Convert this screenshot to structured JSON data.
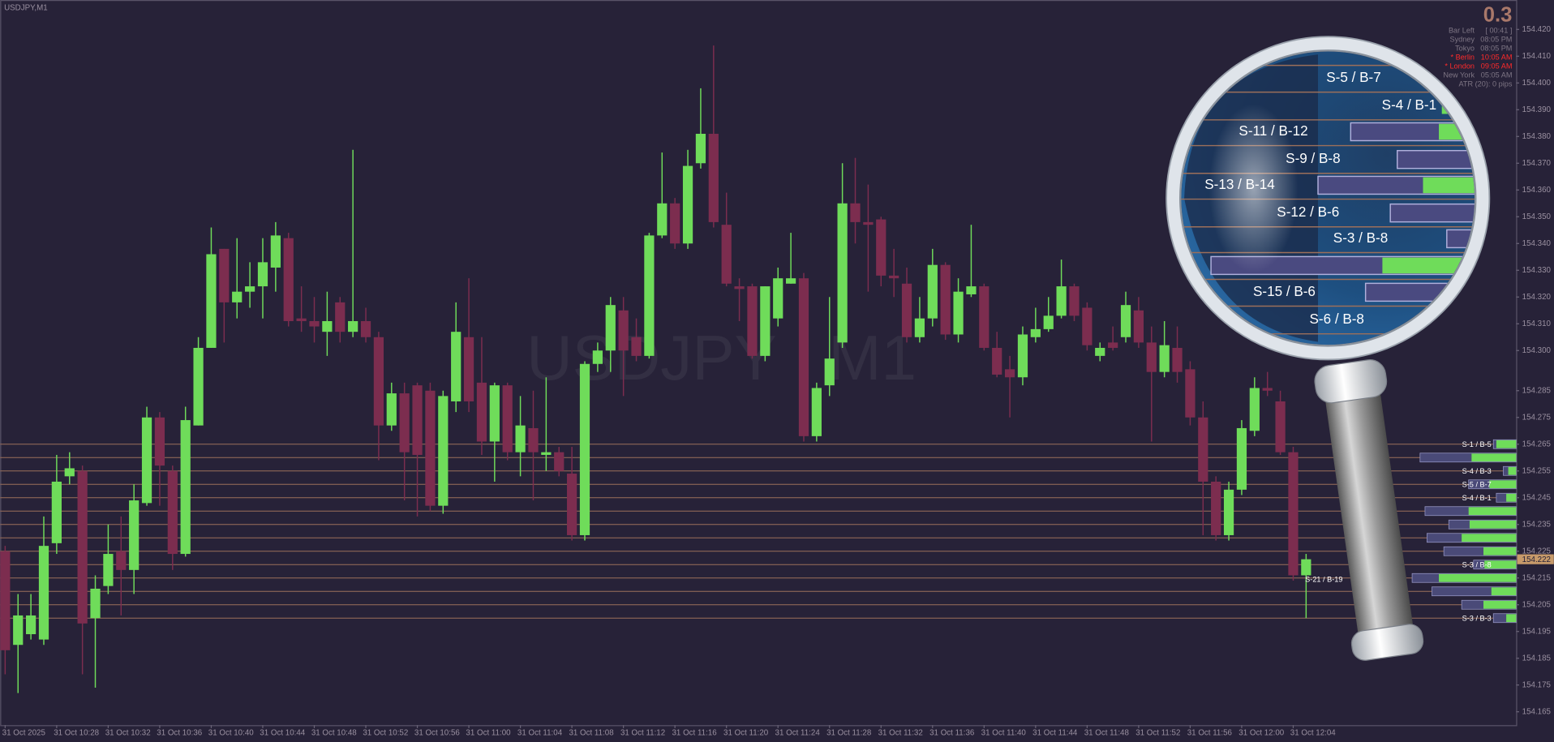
{
  "chart_data": {
    "type": "candlestick",
    "title": "USDJPY,M1",
    "watermark": "USDJPY , M1",
    "up_color": "#6fdc5a",
    "down_color": "#7c2d4f",
    "level_color": "#9c6f5a",
    "ylim": [
      154.16,
      154.431
    ],
    "yticks": [
      {
        "value": 154.42,
        "label": "154.420"
      },
      {
        "value": 154.41,
        "label": "154.410"
      },
      {
        "value": 154.4,
        "label": "154.400"
      },
      {
        "value": 154.39,
        "label": "154.390"
      },
      {
        "value": 154.38,
        "label": "154.380"
      },
      {
        "value": 154.37,
        "label": "154.370"
      },
      {
        "value": 154.36,
        "label": "154.360"
      },
      {
        "value": 154.35,
        "label": "154.350"
      },
      {
        "value": 154.34,
        "label": "154.340"
      },
      {
        "value": 154.33,
        "label": "154.330"
      },
      {
        "value": 154.32,
        "label": "154.320"
      },
      {
        "value": 154.31,
        "label": "154.310"
      },
      {
        "value": 154.3,
        "label": "154.300"
      },
      154.285,
      154.275,
      154.265,
      154.255,
      154.245,
      154.235,
      154.225,
      154.215,
      154.205,
      154.195,
      154.185,
      154.175,
      154.165
    ],
    "categories": [
      "31 Oct 2025",
      null,
      null,
      null,
      "31 Oct 10:28",
      null,
      null,
      null,
      "31 Oct 10:32",
      null,
      null,
      null,
      "31 Oct 10:36",
      null,
      null,
      null,
      "31 Oct 10:40",
      null,
      null,
      null,
      "31 Oct 10:44",
      null,
      null,
      null,
      "31 Oct 10:48",
      null,
      null,
      null,
      "31 Oct 10:52",
      null,
      null,
      null,
      "31 Oct 10:56",
      null,
      null,
      null,
      "31 Oct 11:00",
      null,
      null,
      null,
      "31 Oct 11:04",
      null,
      null,
      null,
      "31 Oct 11:08",
      null,
      null,
      null,
      "31 Oct 11:12",
      null,
      null,
      null,
      "31 Oct 11:16",
      null,
      null,
      null,
      "31 Oct 11:20",
      null,
      null,
      null,
      "31 Oct 11:24",
      null,
      null,
      null,
      "31 Oct 11:28",
      null,
      null,
      null,
      "31 Oct 11:32",
      null,
      null,
      null,
      "31 Oct 11:36",
      null,
      null,
      null,
      "31 Oct 11:40",
      null,
      null,
      null,
      "31 Oct 11:44",
      null,
      null,
      null,
      "31 Oct 11:48",
      null,
      null,
      null,
      "31 Oct 11:52",
      null,
      null,
      null,
      "31 Oct 11:56",
      null,
      null,
      null,
      "31 Oct 12:00",
      null,
      null,
      null,
      "31 Oct 12:04",
      null
    ],
    "ohlc": [
      [
        154.225,
        154.227,
        154.179,
        154.188
      ],
      [
        154.19,
        154.209,
        154.172,
        154.201
      ],
      [
        154.194,
        154.209,
        154.192,
        154.201
      ],
      [
        154.192,
        154.238,
        154.19,
        154.227
      ],
      [
        154.228,
        154.261,
        154.224,
        154.251
      ],
      [
        154.253,
        154.262,
        154.25,
        154.256
      ],
      [
        154.255,
        154.257,
        154.179,
        154.198
      ],
      [
        154.2,
        154.216,
        154.174,
        154.211
      ],
      [
        154.212,
        154.235,
        154.209,
        154.224
      ],
      [
        154.225,
        154.238,
        154.201,
        154.218
      ],
      [
        154.218,
        154.25,
        154.209,
        154.244
      ],
      [
        154.243,
        154.279,
        154.242,
        154.275
      ],
      [
        154.275,
        154.277,
        154.242,
        154.257
      ],
      [
        154.255,
        154.257,
        154.218,
        154.224
      ],
      [
        154.224,
        154.279,
        154.223,
        154.274
      ],
      [
        154.272,
        154.305,
        154.272,
        154.301
      ],
      [
        154.301,
        154.346,
        154.301,
        154.336
      ],
      [
        154.338,
        154.338,
        154.303,
        154.318
      ],
      [
        154.318,
        154.342,
        154.312,
        154.322
      ],
      [
        154.322,
        154.333,
        154.316,
        154.324
      ],
      [
        154.324,
        154.342,
        154.312,
        154.333
      ],
      [
        154.331,
        154.348,
        154.322,
        154.343
      ],
      [
        154.342,
        154.344,
        154.309,
        154.311
      ],
      [
        154.312,
        154.324,
        154.307,
        154.311
      ],
      [
        154.311,
        154.32,
        154.303,
        154.309
      ],
      [
        154.307,
        154.322,
        154.298,
        154.311
      ],
      [
        154.318,
        154.32,
        154.303,
        154.307
      ],
      [
        154.307,
        154.375,
        154.305,
        154.311
      ],
      [
        154.311,
        154.316,
        154.303,
        154.305
      ],
      [
        154.305,
        154.307,
        154.259,
        154.272
      ],
      [
        154.272,
        154.288,
        154.27,
        154.284
      ],
      [
        154.284,
        154.288,
        154.244,
        154.262
      ],
      [
        154.287,
        154.288,
        154.238,
        154.261
      ],
      [
        154.285,
        154.288,
        154.24,
        154.242
      ],
      [
        154.242,
        154.285,
        154.239,
        154.283
      ],
      [
        154.281,
        154.318,
        154.277,
        154.307
      ],
      [
        154.305,
        154.327,
        154.277,
        154.281
      ],
      [
        154.288,
        154.305,
        154.261,
        154.266
      ],
      [
        154.266,
        154.288,
        154.251,
        154.287
      ],
      [
        154.287,
        154.288,
        154.259,
        154.262
      ],
      [
        154.262,
        154.283,
        154.253,
        154.272
      ],
      [
        154.271,
        154.285,
        154.244,
        154.262
      ],
      [
        154.261,
        154.29,
        154.255,
        154.262
      ],
      [
        154.262,
        154.264,
        154.253,
        154.255
      ],
      [
        154.254,
        154.264,
        154.229,
        154.231
      ],
      [
        154.231,
        154.296,
        154.229,
        154.295
      ],
      [
        154.295,
        154.303,
        154.292,
        154.3
      ],
      [
        154.3,
        154.32,
        154.292,
        154.317
      ],
      [
        154.315,
        154.32,
        154.283,
        154.3
      ],
      [
        154.305,
        154.312,
        154.296,
        154.298
      ],
      [
        154.298,
        154.344,
        154.297,
        154.343
      ],
      [
        154.343,
        154.374,
        154.342,
        154.355
      ],
      [
        154.355,
        154.357,
        154.338,
        154.34
      ],
      [
        154.34,
        154.375,
        154.338,
        154.369
      ],
      [
        154.37,
        154.398,
        154.368,
        154.381
      ],
      [
        154.381,
        154.414,
        154.346,
        154.348
      ],
      [
        154.347,
        154.359,
        154.324,
        154.325
      ],
      [
        154.324,
        154.327,
        154.311,
        154.323
      ],
      [
        154.324,
        154.325,
        154.297,
        154.298
      ],
      [
        154.298,
        154.324,
        154.296,
        154.324
      ],
      [
        154.312,
        154.331,
        154.309,
        154.327
      ],
      [
        154.325,
        154.344,
        154.325,
        154.327
      ],
      [
        154.327,
        154.329,
        154.266,
        154.268
      ],
      [
        154.268,
        154.288,
        154.266,
        154.286
      ],
      [
        154.287,
        154.32,
        154.283,
        154.297
      ],
      [
        154.303,
        154.37,
        154.301,
        154.355
      ],
      [
        154.355,
        154.372,
        154.34,
        154.348
      ],
      [
        154.348,
        154.362,
        154.322,
        154.347
      ],
      [
        154.349,
        154.35,
        154.324,
        154.328
      ],
      [
        154.328,
        154.338,
        154.32,
        154.327
      ],
      [
        154.325,
        154.331,
        154.303,
        154.305
      ],
      [
        154.305,
        154.32,
        154.303,
        154.312
      ],
      [
        154.312,
        154.338,
        154.309,
        154.332
      ],
      [
        154.332,
        154.333,
        154.304,
        154.306
      ],
      [
        154.306,
        154.327,
        154.303,
        154.322
      ],
      [
        154.321,
        154.347,
        154.32,
        154.324
      ],
      [
        154.324,
        154.325,
        154.3,
        154.301
      ],
      [
        154.301,
        154.307,
        154.29,
        154.291
      ],
      [
        154.293,
        154.298,
        154.275,
        154.29
      ],
      [
        154.29,
        154.309,
        154.287,
        154.306
      ],
      [
        154.305,
        154.316,
        154.303,
        154.308
      ],
      [
        154.308,
        154.32,
        154.307,
        154.313
      ],
      [
        154.313,
        154.334,
        154.312,
        154.324
      ],
      [
        154.324,
        154.325,
        154.311,
        154.313
      ],
      [
        154.316,
        154.318,
        154.3,
        154.302
      ],
      [
        154.298,
        154.303,
        154.296,
        154.301
      ],
      [
        154.303,
        154.309,
        154.3,
        154.301
      ],
      [
        154.305,
        154.322,
        154.303,
        154.317
      ],
      [
        154.315,
        154.32,
        154.301,
        154.303
      ],
      [
        154.303,
        154.309,
        154.266,
        154.292
      ],
      [
        154.292,
        154.311,
        154.29,
        154.302
      ],
      [
        154.301,
        154.309,
        154.288,
        154.292
      ],
      [
        154.293,
        154.296,
        154.272,
        154.275
      ],
      [
        154.275,
        154.281,
        154.231,
        154.251
      ],
      [
        154.251,
        154.253,
        154.229,
        154.231
      ],
      [
        154.231,
        154.251,
        154.229,
        154.248
      ],
      [
        154.248,
        154.274,
        154.246,
        154.271
      ],
      [
        154.27,
        154.29,
        154.268,
        154.286
      ],
      [
        154.286,
        154.292,
        154.283,
        154.285
      ],
      [
        154.281,
        154.285,
        154.261,
        154.262
      ],
      [
        154.262,
        154.264,
        154.214,
        154.216
      ],
      [
        154.216,
        154.224,
        154.2,
        154.222
      ]
    ],
    "current_price": 154.222,
    "marker_label": "S-21 / B-19",
    "levels": [
      {
        "price": 154.265,
        "label": "S-1 / B-5"
      },
      {
        "price": 154.26,
        "label": null
      },
      {
        "price": 154.255,
        "label": "S-4 / B-3"
      },
      {
        "price": 154.25,
        "label": "S-5 / B-7"
      },
      {
        "price": 154.245,
        "label": "S-4 / B-1"
      },
      {
        "price": 154.24,
        "label": null
      },
      {
        "price": 154.235,
        "label": null
      },
      {
        "price": 154.23,
        "label": null
      },
      {
        "price": 154.225,
        "label": null
      },
      {
        "price": 154.22,
        "label": "S-3 / B-8"
      },
      {
        "price": 154.215,
        "label": null
      },
      {
        "price": 154.21,
        "label": null
      },
      {
        "price": 154.205,
        "label": null
      },
      {
        "price": 154.2,
        "label": "S-3 / B-3"
      }
    ]
  },
  "info_panel": {
    "value": 0.3,
    "rows": [
      {
        "label": "Bar Left",
        "value": "[ 00:41 ]"
      },
      {
        "label": "Sydney",
        "value": "08:05 PM"
      },
      {
        "label": "Tokyo",
        "value": "08:05 PM"
      },
      {
        "label": "* Berlin",
        "value": "10:05 AM",
        "highlight": true
      },
      {
        "label": "* London",
        "value": "09:05 AM",
        "highlight": true
      },
      {
        "label": "New York",
        "value": "05:05 AM"
      },
      {
        "label": "ATR (20): 0 pips"
      }
    ]
  },
  "magnifier": {
    "labels": [
      "S-5 / B-7",
      "S-4 / B-1",
      "S-11 / B-12",
      "S-9 / B-8",
      "S-13 / B-14",
      "S-12 / B-6",
      "S-3 / B-8",
      null,
      "S-15 / B-6",
      "S-6 / B-8"
    ]
  }
}
